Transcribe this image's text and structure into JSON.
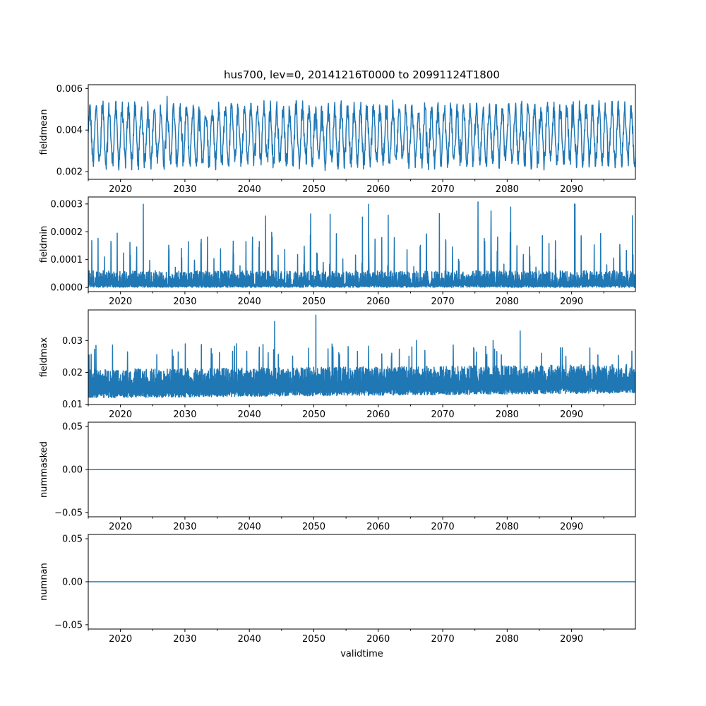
{
  "chart_data": {
    "type": "line",
    "title": "hus700, lev=0, 20141216T0000 to 20991124T1800",
    "xlabel": "validtime",
    "x_range": [
      2015.0,
      2099.9
    ],
    "x_ticks": [
      2020,
      2030,
      2040,
      2050,
      2060,
      2070,
      2080,
      2090
    ],
    "x_tick_labels": [
      "2020",
      "2030",
      "2040",
      "2050",
      "2060",
      "2070",
      "2080",
      "2090"
    ],
    "series_color": "#1f77b4",
    "panels": [
      {
        "name": "fieldmean",
        "ylabel": "fieldmean",
        "ylim": [
          0.00163,
          0.00618
        ],
        "y_ticks": [
          0.002,
          0.004,
          0.006
        ],
        "y_tick_labels": [
          "0.002",
          "0.004",
          "0.006"
        ],
        "seasonal_low": 0.0025,
        "seasonal_high": 0.005,
        "typical_min": 0.002,
        "typical_max": 0.0055,
        "extreme_max": 0.0059,
        "extreme_min": 0.0018,
        "pattern": "seasonal"
      },
      {
        "name": "fieldmin",
        "ylabel": "fieldmin",
        "ylim": [
          -1.5e-05,
          0.000325
        ],
        "y_ticks": [
          0.0,
          0.0001,
          0.0002,
          0.0003
        ],
        "y_tick_labels": [
          "0.0000",
          "0.0001",
          "0.0002",
          "0.0003"
        ],
        "baseline": 0.0,
        "band_top": 6e-05,
        "typical_peak": 0.00018,
        "extreme_max": 0.000315,
        "pattern": "spiky"
      },
      {
        "name": "fieldmax",
        "ylabel": "fieldmax",
        "ylim": [
          0.0099,
          0.0396
        ],
        "y_ticks": [
          0.01,
          0.02,
          0.03
        ],
        "y_tick_labels": [
          "0.01",
          "0.02",
          "0.03"
        ],
        "band_low": 0.012,
        "band_high": 0.021,
        "typical_peak": 0.025,
        "extreme_max": 0.038,
        "extreme_peaks": [
          {
            "x": 2043.9,
            "y": 0.036
          },
          {
            "x": 2050.3,
            "y": 0.038
          },
          {
            "x": 2038.0,
            "y": 0.029
          },
          {
            "x": 2082.0,
            "y": 0.033
          },
          {
            "x": 2065.9,
            "y": 0.03
          },
          {
            "x": 2077.8,
            "y": 0.03
          }
        ],
        "pattern": "band"
      },
      {
        "name": "nummasked",
        "ylabel": "nummasked",
        "ylim": [
          -0.055,
          0.055
        ],
        "y_ticks": [
          -0.05,
          0.0,
          0.05
        ],
        "y_tick_labels": [
          "−0.05",
          "0.00",
          "0.05"
        ],
        "constant_value": 0.0,
        "pattern": "constant"
      },
      {
        "name": "numnan",
        "ylabel": "numnan",
        "ylim": [
          -0.055,
          0.055
        ],
        "y_ticks": [
          -0.05,
          0.0,
          0.05
        ],
        "y_tick_labels": [
          "−0.05",
          "0.00",
          "0.05"
        ],
        "constant_value": 0.0,
        "pattern": "constant"
      }
    ]
  }
}
